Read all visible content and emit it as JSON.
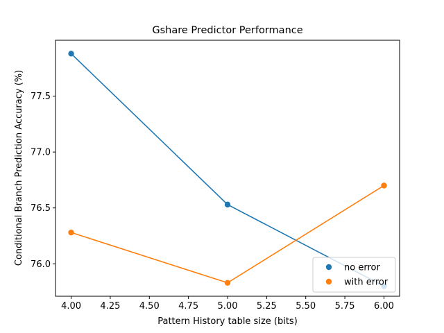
{
  "chart_data": {
    "type": "line",
    "title": "Gshare Predictor Performance",
    "xlabel": "Pattern History table size (bits)",
    "ylabel": "Conditional Branch Prediction Accuracy (%)",
    "xlim": [
      3.9,
      6.1
    ],
    "ylim": [
      75.71,
      78.0
    ],
    "x": [
      4.0,
      5.0,
      6.0
    ],
    "xticks": [
      4.0,
      4.25,
      4.5,
      4.75,
      5.0,
      5.25,
      5.5,
      5.75,
      6.0
    ],
    "xtick_labels": [
      "4.00",
      "4.25",
      "4.50",
      "4.75",
      "5.00",
      "5.25",
      "5.50",
      "5.75",
      "6.00"
    ],
    "yticks": [
      76.0,
      76.5,
      77.0,
      77.5
    ],
    "ytick_labels": [
      "76.0",
      "76.5",
      "77.0",
      "77.5"
    ],
    "series": [
      {
        "name": "no error",
        "values": [
          77.88,
          76.53,
          75.8
        ],
        "color": "#1f77b4"
      },
      {
        "name": "with error",
        "values": [
          76.28,
          75.83,
          76.7
        ],
        "color": "#ff7f0e"
      }
    ],
    "legend": "lower-right",
    "grid": false,
    "markers": "circle"
  }
}
